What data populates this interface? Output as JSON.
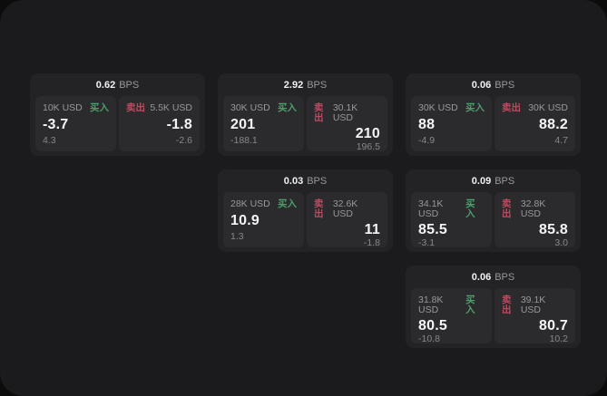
{
  "labels": {
    "bps_unit": "BPS",
    "buy": "买入",
    "sell": "卖出"
  },
  "colors": {
    "buy": "#4d9e6b",
    "sell": "#bf4a60",
    "panel-bg": "#1b1b1d",
    "card-bg": "#232326",
    "tile-bg": "#2b2b2e"
  },
  "cards": [
    {
      "bps": "0.62",
      "buy": {
        "amount": "10K USD",
        "value": "-3.7",
        "sub": "4.3"
      },
      "sell": {
        "amount": "5.5K USD",
        "value": "-1.8",
        "sub": "-2.6"
      }
    },
    {
      "bps": "2.92",
      "buy": {
        "amount": "30K USD",
        "value": "201",
        "sub": "-188.1"
      },
      "sell": {
        "amount": "30.1K USD",
        "value": "210",
        "sub": "196.5"
      }
    },
    {
      "bps": "0.06",
      "buy": {
        "amount": "30K USD",
        "value": "88",
        "sub": "-4.9"
      },
      "sell": {
        "amount": "30K USD",
        "value": "88.2",
        "sub": "4.7"
      }
    },
    {
      "bps": "0.03",
      "buy": {
        "amount": "28K USD",
        "value": "10.9",
        "sub": "1.3"
      },
      "sell": {
        "amount": "32.6K USD",
        "value": "11",
        "sub": "-1.8"
      }
    },
    {
      "bps": "0.09",
      "buy": {
        "amount": "34.1K USD",
        "value": "85.5",
        "sub": "-3.1"
      },
      "sell": {
        "amount": "32.8K USD",
        "value": "85.8",
        "sub": "3.0"
      }
    },
    {
      "bps": "0.06",
      "buy": {
        "amount": "31.8K USD",
        "value": "80.5",
        "sub": "-10.8"
      },
      "sell": {
        "amount": "39.1K USD",
        "value": "80.7",
        "sub": "10.2"
      }
    }
  ]
}
